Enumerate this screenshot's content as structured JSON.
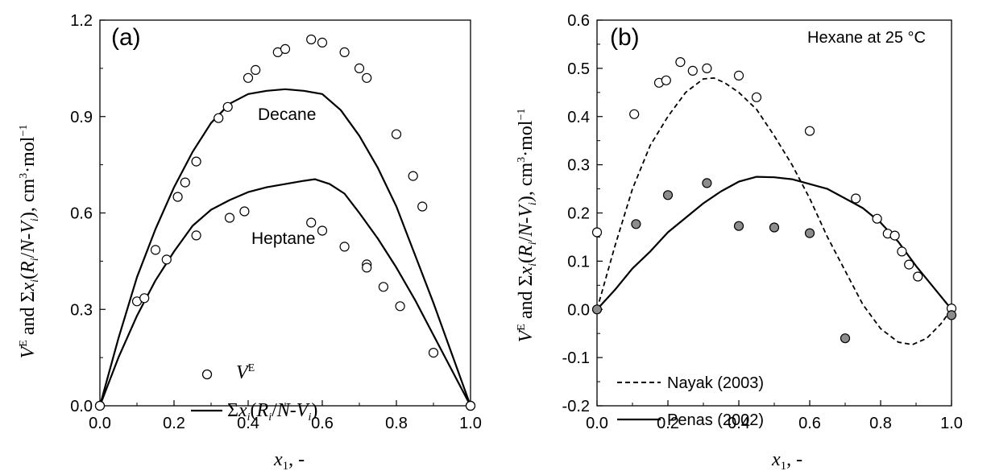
{
  "chart_data": [
    {
      "type": "scatter",
      "panel_label": "(a)",
      "xlabel": "x1, -",
      "ylabel": "VE and Σxi(Ri/N-Vi), cm3·mol−1",
      "xlim": [
        0,
        1.0
      ],
      "ylim": [
        0,
        1.2
      ],
      "x_ticks": [
        "0.0",
        "0.2",
        "0.4",
        "0.6",
        "0.8",
        "1.0"
      ],
      "y_ticks": [
        "0.0",
        "0.3",
        "0.6",
        "0.9",
        "1.2"
      ],
      "curve_labels": [
        "Decane",
        "Heptane"
      ],
      "legend": {
        "placement": "bottom-left",
        "markers_label": "VE",
        "line_label": "Σxi(Ri/N-Vi)"
      },
      "series": [
        {
          "name": "Decane",
          "kind": "points",
          "fill": "open",
          "points": [
            [
              0,
              0
            ],
            [
              0.15,
              0.485
            ],
            [
              0.21,
              0.65
            ],
            [
              0.23,
              0.695
            ],
            [
              0.26,
              0.76
            ],
            [
              0.32,
              0.895
            ],
            [
              0.345,
              0.93
            ],
            [
              0.4,
              1.02
            ],
            [
              0.42,
              1.045
            ],
            [
              0.48,
              1.1
            ],
            [
              0.5,
              1.11
            ],
            [
              0.57,
              1.14
            ],
            [
              0.6,
              1.13
            ],
            [
              0.66,
              1.1
            ],
            [
              0.7,
              1.05
            ],
            [
              0.72,
              1.02
            ],
            [
              0.8,
              0.845
            ],
            [
              0.845,
              0.715
            ],
            [
              0.87,
              0.62
            ],
            [
              0.9,
              0.165
            ],
            [
              1.0,
              0
            ]
          ]
        },
        {
          "name": "Heptane",
          "kind": "points",
          "fill": "open",
          "points": [
            [
              0,
              0
            ],
            [
              0.1,
              0.325
            ],
            [
              0.12,
              0.335
            ],
            [
              0.18,
              0.455
            ],
            [
              0.26,
              0.53
            ],
            [
              0.35,
              0.585
            ],
            [
              0.39,
              0.605
            ],
            [
              0.57,
              0.57
            ],
            [
              0.6,
              0.545
            ],
            [
              0.66,
              0.495
            ],
            [
              0.72,
              0.44
            ],
            [
              0.72,
              0.43
            ],
            [
              0.765,
              0.37
            ],
            [
              0.81,
              0.31
            ],
            [
              1.0,
              0
            ]
          ]
        },
        {
          "name": "Decane",
          "kind": "line",
          "dash": "solid",
          "points": [
            [
              0,
              0
            ],
            [
              0.05,
              0.21
            ],
            [
              0.1,
              0.4
            ],
            [
              0.15,
              0.55
            ],
            [
              0.2,
              0.68
            ],
            [
              0.25,
              0.79
            ],
            [
              0.3,
              0.88
            ],
            [
              0.35,
              0.94
            ],
            [
              0.4,
              0.97
            ],
            [
              0.45,
              0.98
            ],
            [
              0.5,
              0.985
            ],
            [
              0.55,
              0.98
            ],
            [
              0.6,
              0.97
            ],
            [
              0.65,
              0.92
            ],
            [
              0.7,
              0.84
            ],
            [
              0.75,
              0.74
            ],
            [
              0.8,
              0.62
            ],
            [
              0.85,
              0.47
            ],
            [
              0.9,
              0.32
            ],
            [
              0.95,
              0.16
            ],
            [
              1.0,
              0
            ]
          ]
        },
        {
          "name": "Heptane",
          "kind": "line",
          "dash": "solid",
          "points": [
            [
              0,
              0
            ],
            [
              0.05,
              0.15
            ],
            [
              0.1,
              0.28
            ],
            [
              0.15,
              0.39
            ],
            [
              0.2,
              0.48
            ],
            [
              0.25,
              0.56
            ],
            [
              0.3,
              0.61
            ],
            [
              0.35,
              0.64
            ],
            [
              0.4,
              0.665
            ],
            [
              0.45,
              0.68
            ],
            [
              0.5,
              0.69
            ],
            [
              0.55,
              0.7
            ],
            [
              0.58,
              0.705
            ],
            [
              0.62,
              0.69
            ],
            [
              0.66,
              0.66
            ],
            [
              0.7,
              0.6
            ],
            [
              0.75,
              0.52
            ],
            [
              0.8,
              0.43
            ],
            [
              0.85,
              0.33
            ],
            [
              0.9,
              0.22
            ],
            [
              0.95,
              0.11
            ],
            [
              1.0,
              0
            ]
          ]
        }
      ]
    },
    {
      "type": "scatter",
      "panel_label": "(b)",
      "annotation": "Hexane at 25 °C",
      "xlabel": "x1, -",
      "ylabel": "VE and Σxi(Ri/N-Vi), cm3·mol−1",
      "xlim": [
        0,
        1.0
      ],
      "ylim": [
        -0.2,
        0.6
      ],
      "x_ticks": [
        "0.0",
        "0.2",
        "0.4",
        "0.6",
        "0.8",
        "1.0"
      ],
      "y_ticks": [
        "-0.2",
        "-0.1",
        "0.0",
        "0.1",
        "0.2",
        "0.3",
        "0.4",
        "0.5",
        "0.6"
      ],
      "legend": {
        "placement": "bottom-left",
        "entries": [
          "Nayak (2003)",
          "Penas (2002)"
        ]
      },
      "series": [
        {
          "name": "open",
          "kind": "points",
          "fill": "open",
          "points": [
            [
              0,
              0.16
            ],
            [
              0.105,
              0.405
            ],
            [
              0.175,
              0.47
            ],
            [
              0.195,
              0.475
            ],
            [
              0.235,
              0.513
            ],
            [
              0.27,
              0.495
            ],
            [
              0.31,
              0.5
            ],
            [
              0.4,
              0.485
            ],
            [
              0.45,
              0.44
            ],
            [
              0.6,
              0.37
            ],
            [
              0.73,
              0.23
            ],
            [
              0.79,
              0.188
            ],
            [
              0.82,
              0.157
            ],
            [
              0.84,
              0.153
            ],
            [
              0.86,
              0.12
            ],
            [
              0.88,
              0.093
            ],
            [
              0.905,
              0.068
            ],
            [
              1.0,
              0.002
            ]
          ]
        },
        {
          "name": "filled",
          "kind": "points",
          "fill": "gray",
          "points": [
            [
              0,
              0
            ],
            [
              0.11,
              0.177
            ],
            [
              0.2,
              0.237
            ],
            [
              0.31,
              0.262
            ],
            [
              0.4,
              0.173
            ],
            [
              0.5,
              0.17
            ],
            [
              0.6,
              0.158
            ],
            [
              0.7,
              -0.06
            ],
            [
              1.0,
              -0.012
            ]
          ]
        },
        {
          "name": "Nayak (2003)",
          "kind": "line",
          "dash": "dashed",
          "points": [
            [
              0,
              0
            ],
            [
              0.05,
              0.13
            ],
            [
              0.1,
              0.25
            ],
            [
              0.15,
              0.34
            ],
            [
              0.2,
              0.4
            ],
            [
              0.25,
              0.45
            ],
            [
              0.3,
              0.478
            ],
            [
              0.33,
              0.48
            ],
            [
              0.36,
              0.47
            ],
            [
              0.4,
              0.45
            ],
            [
              0.45,
              0.415
            ],
            [
              0.5,
              0.36
            ],
            [
              0.55,
              0.3
            ],
            [
              0.6,
              0.23
            ],
            [
              0.65,
              0.15
            ],
            [
              0.7,
              0.08
            ],
            [
              0.75,
              0.01
            ],
            [
              0.8,
              -0.04
            ],
            [
              0.85,
              -0.068
            ],
            [
              0.89,
              -0.073
            ],
            [
              0.93,
              -0.06
            ],
            [
              0.97,
              -0.03
            ],
            [
              1.0,
              0
            ]
          ]
        },
        {
          "name": "Penas (2002)",
          "kind": "line",
          "dash": "solid",
          "points": [
            [
              0,
              0
            ],
            [
              0.05,
              0.04
            ],
            [
              0.1,
              0.085
            ],
            [
              0.15,
              0.12
            ],
            [
              0.2,
              0.16
            ],
            [
              0.25,
              0.19
            ],
            [
              0.3,
              0.22
            ],
            [
              0.35,
              0.245
            ],
            [
              0.4,
              0.265
            ],
            [
              0.45,
              0.275
            ],
            [
              0.5,
              0.274
            ],
            [
              0.55,
              0.27
            ],
            [
              0.6,
              0.26
            ],
            [
              0.65,
              0.25
            ],
            [
              0.7,
              0.23
            ],
            [
              0.75,
              0.21
            ],
            [
              0.8,
              0.18
            ],
            [
              0.85,
              0.14
            ],
            [
              0.9,
              0.09
            ],
            [
              0.95,
              0.045
            ],
            [
              1.0,
              0
            ]
          ]
        }
      ]
    }
  ]
}
